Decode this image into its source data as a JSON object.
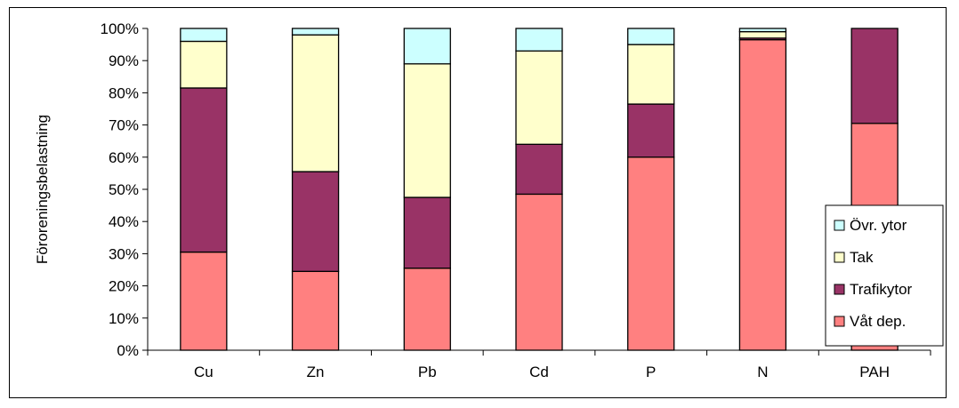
{
  "chart_data": {
    "type": "bar",
    "stacked": true,
    "percent": true,
    "title": "",
    "xlabel": "",
    "ylabel": "Föroreningsbelastning",
    "ylim": [
      0,
      100
    ],
    "yticks": [
      "0%",
      "10%",
      "20%",
      "30%",
      "40%",
      "50%",
      "60%",
      "70%",
      "80%",
      "90%",
      "100%"
    ],
    "grid": false,
    "legend_position": "right",
    "categories": [
      "Cu",
      "Zn",
      "Pb",
      "Cd",
      "P",
      "N",
      "PAH"
    ],
    "series": [
      {
        "name": "Våt dep.",
        "color": "#ff8080",
        "values": [
          30.5,
          24.5,
          25.5,
          48.5,
          60,
          96.5,
          70.5
        ]
      },
      {
        "name": "Trafikytor",
        "color": "#993366",
        "values": [
          51,
          31,
          22,
          15.5,
          16.5,
          0.5,
          29.5
        ]
      },
      {
        "name": "Tak",
        "color": "#ffffcc",
        "values": [
          14.5,
          42.5,
          41.5,
          29,
          18.5,
          2,
          0
        ]
      },
      {
        "name": "Övr. ytor",
        "color": "#ccffff",
        "values": [
          4,
          2,
          11,
          7,
          5,
          1,
          0
        ]
      }
    ]
  }
}
